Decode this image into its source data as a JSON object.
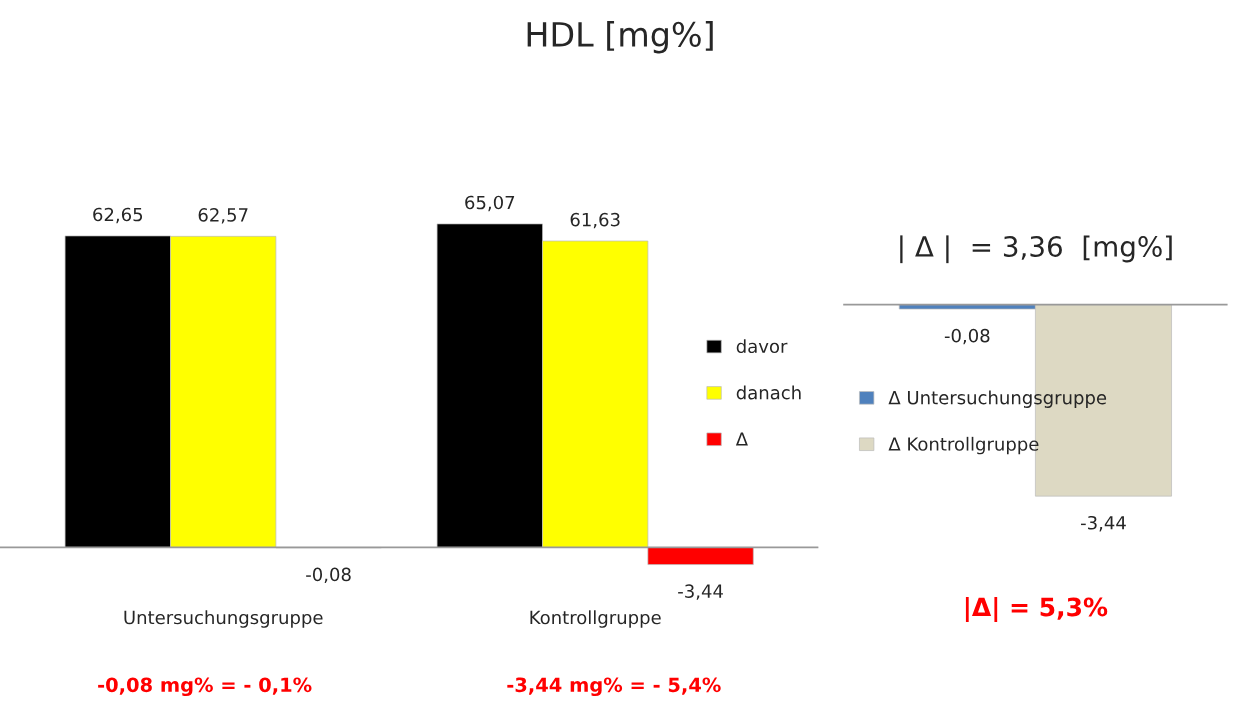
{
  "chart_data": [
    {
      "type": "bar",
      "title": "HDL [mg%]",
      "categories": [
        "Untersuchungsgruppe",
        "Kontrollgruppe"
      ],
      "series": [
        {
          "name": "davor",
          "color": "#000000",
          "values": [
            62.65,
            65.07
          ],
          "value_labels": [
            "62,65",
            "65,07"
          ]
        },
        {
          "name": "danach",
          "color": "#ffff00",
          "values": [
            62.57,
            61.63
          ],
          "value_labels": [
            "62,57",
            "61,63"
          ]
        },
        {
          "name": "Δ",
          "color": "#ff0000",
          "values": [
            -0.08,
            -3.44
          ],
          "value_labels": [
            "-0,08",
            "-3,44"
          ]
        }
      ],
      "legend": "right",
      "tick_labels": "x",
      "grid": false,
      "annotations": [
        "-0,08 mg% = - 0,1%",
        "-3,44 mg% = - 5,4%"
      ]
    },
    {
      "type": "bar",
      "title": "| Δ |  = 3,36  [mg%]",
      "categories": [
        null
      ],
      "series": [
        {
          "name": "Δ Untersuchungsgruppe",
          "color": "#4f81bd",
          "values": [
            -0.08
          ],
          "value_labels": [
            "-0,08"
          ]
        },
        {
          "name": "Δ Kontrollgruppe",
          "color": "#ddd9c3",
          "values": [
            -3.44
          ],
          "value_labels": [
            "-3,44"
          ]
        }
      ],
      "legend": "left",
      "tick_labels": false,
      "grid": false,
      "annotations": [
        "|Δ| = 5,3%"
      ]
    }
  ]
}
